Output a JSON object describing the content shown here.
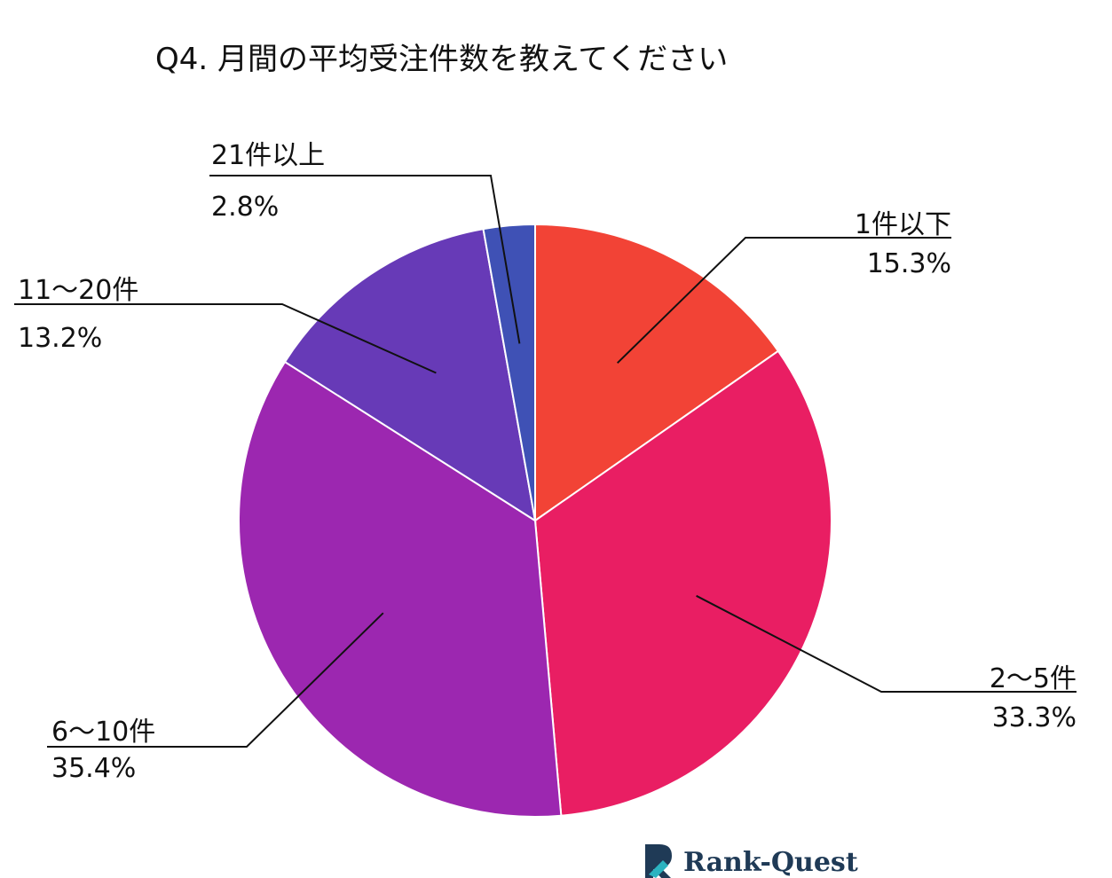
{
  "chart_data": {
    "type": "pie",
    "title": "Q4. 月間の平均受注件数を教えてください",
    "slices": [
      {
        "label": "1件以下",
        "value": 15.3,
        "value_text": "15.3%",
        "color": "#f24336"
      },
      {
        "label": "2〜5件",
        "value": 33.3,
        "value_text": "33.3%",
        "color": "#e91e63"
      },
      {
        "label": "6〜10件",
        "value": 35.4,
        "value_text": "35.4%",
        "color": "#9c27b0"
      },
      {
        "label": "11〜20件",
        "value": 13.2,
        "value_text": "13.2%",
        "color": "#673ab7"
      },
      {
        "label": "21件以上",
        "value": 2.8,
        "value_text": "2.8%",
        "color": "#3f51b5"
      }
    ],
    "start_position": "top",
    "direction": "clockwise",
    "legend": "none"
  },
  "brand": {
    "logo_icon": "rank-quest-logo-icon",
    "name": "Rank-Quest",
    "colors": {
      "dark": "#1f3a56",
      "accent": "#2bb3c0"
    }
  }
}
